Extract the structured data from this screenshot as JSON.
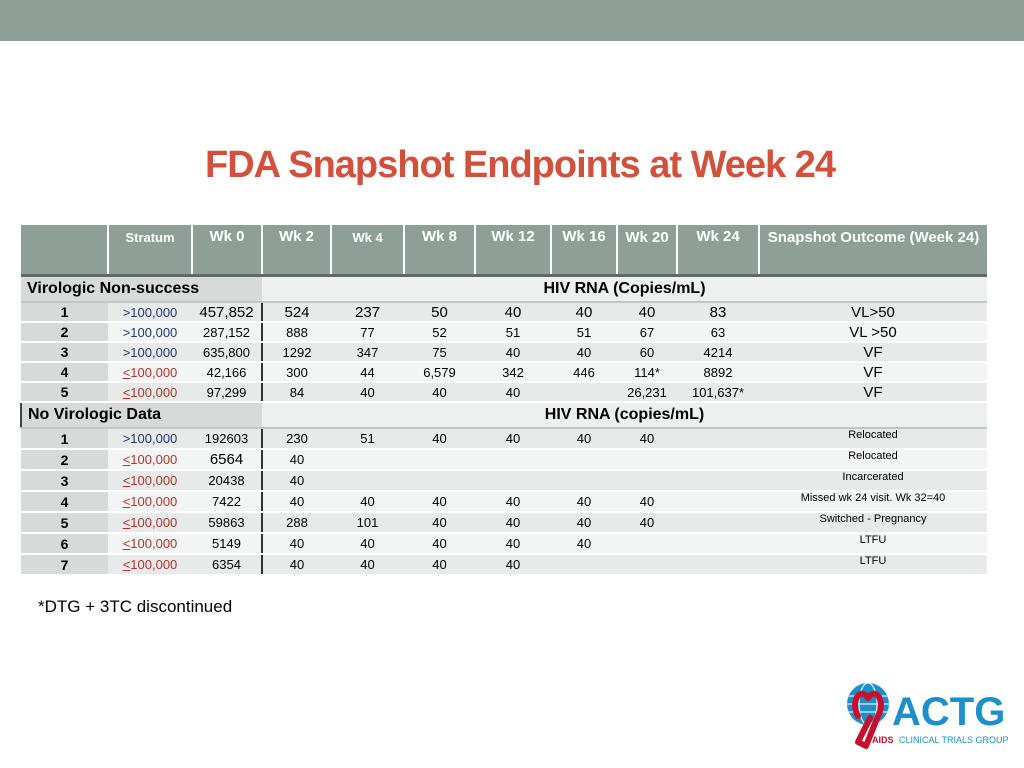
{
  "title": "FDA Snapshot Endpoints at Week 24",
  "header": {
    "stratum": "Stratum",
    "wk0": "Wk 0",
    "wk2": "Wk  2",
    "wk4": "Wk 4",
    "wk8": "Wk 8",
    "wk12": "Wk 12",
    "wk16": "Wk 16",
    "wk20": "Wk 20",
    "wk24": "Wk 24",
    "snapshot": "Snapshot Outcome (Week 24)"
  },
  "section1": {
    "label": "Virologic Non-success",
    "rna": "HIV RNA (Copies/mL)"
  },
  "section2": {
    "label": "No Virologic Data",
    "rna": "HIV RNA (copies/mL)"
  },
  "vns": [
    {
      "id": "1",
      "strat_sym": ">",
      "strat_val": "100,000",
      "wk0": "457,852",
      "wk2": "524",
      "wk4": "237",
      "wk8": "50",
      "wk12": "40",
      "wk16": "40",
      "wk20": "40",
      "wk24": "83",
      "out": "VL>50"
    },
    {
      "id": "2",
      "strat_sym": ">",
      "strat_val": "100,000",
      "wk0": "287,152",
      "wk2": "888",
      "wk4": "77",
      "wk8": "52",
      "wk12": "51",
      "wk16": "51",
      "wk20": "67",
      "wk24": "63",
      "out": "VL >50"
    },
    {
      "id": "3",
      "strat_sym": ">",
      "strat_val": "100,000",
      "wk0": "635,800",
      "wk2": "1292",
      "wk4": "347",
      "wk8": "75",
      "wk12": "40",
      "wk16": "40",
      "wk20": "60",
      "wk24": "4214",
      "out": "VF"
    },
    {
      "id": "4",
      "strat_sym": "<",
      "strat_val": "100,000",
      "wk0": "42,166",
      "wk2": "300",
      "wk4": "44",
      "wk8": "6,579",
      "wk12": "342",
      "wk16": "446",
      "wk20": "114*",
      "wk24": "8892",
      "out": "VF"
    },
    {
      "id": "5",
      "strat_sym": "<",
      "strat_val": "100,000",
      "wk0": "97,299",
      "wk2": "84",
      "wk4": "40",
      "wk8": "40",
      "wk12": "40",
      "wk16": "",
      "wk20": "26,231",
      "wk24": "101,637*",
      "out": "VF"
    }
  ],
  "nvd": [
    {
      "id": "1",
      "strat_sym": ">",
      "strat_val": "100,000",
      "wk0": "192603",
      "wk2": "230",
      "wk4": "51",
      "wk8": "40",
      "wk12": "40",
      "wk16": "40",
      "wk20": "40",
      "wk24": "",
      "out": "Relocated"
    },
    {
      "id": "2",
      "strat_sym": "<",
      "strat_val": "100,000",
      "wk0": "6564",
      "wk2": "40",
      "wk4": "",
      "wk8": "",
      "wk12": "",
      "wk16": "",
      "wk20": "",
      "wk24": "",
      "out": "Relocated"
    },
    {
      "id": "3",
      "strat_sym": "<",
      "strat_val": "100,000",
      "wk0": "20438",
      "wk2": "40",
      "wk4": "",
      "wk8": "",
      "wk12": "",
      "wk16": "",
      "wk20": "",
      "wk24": "",
      "out": "Incarcerated"
    },
    {
      "id": "4",
      "strat_sym": "<",
      "strat_val": "100,000",
      "wk0": "7422",
      "wk2": "40",
      "wk4": "40",
      "wk8": "40",
      "wk12": "40",
      "wk16": "40",
      "wk20": "40",
      "wk24": "",
      "out": "Missed wk 24 visit.  Wk 32=40"
    },
    {
      "id": "5",
      "strat_sym": "<",
      "strat_val": "100,000",
      "wk0": "59863",
      "wk2": "288",
      "wk4": "101",
      "wk8": "40",
      "wk12": "40",
      "wk16": "40",
      "wk20": "40",
      "wk24": "",
      "out": "Switched - Pregnancy"
    },
    {
      "id": "6",
      "strat_sym": "<",
      "strat_val": "100,000",
      "wk0": "5149",
      "wk2": "40",
      "wk4": "40",
      "wk8": "40",
      "wk12": "40",
      "wk16": "40",
      "wk20": "",
      "wk24": "",
      "out": "LTFU"
    },
    {
      "id": "7",
      "strat_sym": "<",
      "strat_val": "100,000",
      "wk0": "6354",
      "wk2": "40",
      "wk4": "40",
      "wk8": "40",
      "wk12": "40",
      "wk16": "",
      "wk20": "",
      "wk24": "",
      "out": "LTFU"
    }
  ],
  "footnote": "*DTG + 3TC discontinued",
  "logo": {
    "text": "ACTG",
    "tagline_a": "AIDS",
    "tagline_b": "CLINICAL TRIALS GROUP"
  },
  "colors": {
    "title": "#d2503c",
    "header_bg": "#8d9f97",
    "logo_blue": "#1f8fc9",
    "ribbon_red": "#c8102e"
  }
}
